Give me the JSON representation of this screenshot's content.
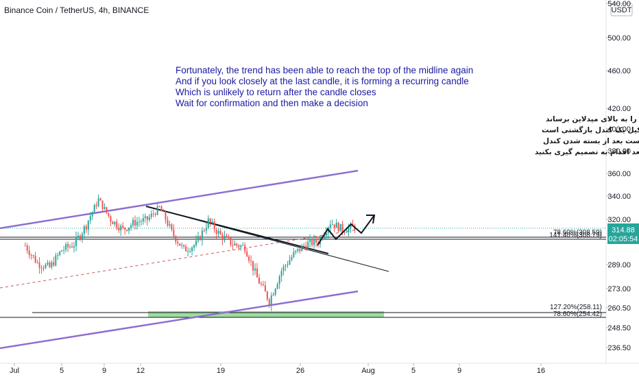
{
  "header": {
    "title": "Binance Coin / TetherUS, 4h, BINANCE",
    "currency": "USDT"
  },
  "annotations": {
    "english": [
      "Fortunately, the trend has been able to reach the top of the midline again",
      "And if you look closely at the last candle, it is forming a recurring candle",
      "Which is unlikely to return after the candle closes",
      "Wait for confirmation and then make a decision"
    ],
    "persian": [
      "خوشبختانه روند دوباره توانسته خودش را به بالای میدلاین برساند",
      "و اگر به کندل آخر دقت کنید درحال تشکیل یک کندل بازگشتی است",
      "که احتمال اینکه روند بازگشت بکند کم است بعد از بسته شدن کندل",
      "منتظر گرفتن تاییدیه باشید و بعد اقدام به تصمیم گیری بکنید"
    ]
  },
  "price_badge": {
    "price": "314.88",
    "countdown": "02:05:54",
    "color": "#26a69a"
  },
  "fib_labels": {
    "upper_a": "78.60%(308.59)",
    "upper_b": "141.40%(308.79)",
    "lower_a": "127.20%(258.11)",
    "lower_b": "78.60%(254.42)"
  },
  "colors": {
    "up": "#26a69a",
    "down": "#ef5350",
    "channel": "#8c6fd1",
    "zone": "#7fcf7f"
  },
  "chart_data": {
    "type": "candlestick",
    "symbol": "BNBUSDT",
    "timeframe": "4h",
    "x_tick_labels": [
      "Jul",
      "5",
      "9",
      "12",
      "19",
      "26",
      "Aug",
      "5",
      "9",
      "16"
    ],
    "y_tick_labels": [
      "540.00",
      "500.00",
      "460.00",
      "420.00",
      "400.00",
      "380.00",
      "360.00",
      "340.00",
      "320.00",
      "289.00",
      "273.00",
      "260.50",
      "248.50",
      "236.50"
    ],
    "y_ticks": [
      540,
      500,
      460,
      420,
      400,
      380,
      360,
      340,
      320,
      289,
      273,
      260.5,
      248.5,
      236.5
    ],
    "last_price": 314.88,
    "close_path": [
      {
        "date": "2021-07-01",
        "price": 302
      },
      {
        "date": "2021-07-02",
        "price": 290
      },
      {
        "date": "2021-07-03",
        "price": 287
      },
      {
        "date": "2021-07-04",
        "price": 299
      },
      {
        "date": "2021-07-05",
        "price": 303
      },
      {
        "date": "2021-07-06",
        "price": 316
      },
      {
        "date": "2021-07-07",
        "price": 337
      },
      {
        "date": "2021-07-08",
        "price": 320
      },
      {
        "date": "2021-07-09",
        "price": 313
      },
      {
        "date": "2021-07-10",
        "price": 318
      },
      {
        "date": "2021-07-11",
        "price": 320
      },
      {
        "date": "2021-07-12",
        "price": 330
      },
      {
        "date": "2021-07-13",
        "price": 311
      },
      {
        "date": "2021-07-14",
        "price": 299
      },
      {
        "date": "2021-07-15",
        "price": 303
      },
      {
        "date": "2021-07-16",
        "price": 319
      },
      {
        "date": "2021-07-17",
        "price": 309
      },
      {
        "date": "2021-07-18",
        "price": 303
      },
      {
        "date": "2021-07-19",
        "price": 301
      },
      {
        "date": "2021-07-20",
        "price": 280
      },
      {
        "date": "2021-07-21",
        "price": 265
      },
      {
        "date": "2021-07-22",
        "price": 285
      },
      {
        "date": "2021-07-23",
        "price": 296
      },
      {
        "date": "2021-07-24",
        "price": 303
      },
      {
        "date": "2021-07-25",
        "price": 305
      },
      {
        "date": "2021-07-26",
        "price": 318
      },
      {
        "date": "2021-07-27",
        "price": 313
      },
      {
        "date": "2021-07-28",
        "price": 314.88
      }
    ],
    "projection": [
      {
        "date": "2021-07-28",
        "price": 306
      },
      {
        "date": "2021-07-29",
        "price": 312
      },
      {
        "date": "2021-07-30",
        "price": 311
      },
      {
        "date": "2021-07-31",
        "price": 321
      }
    ],
    "upper_channel": [
      {
        "date": "2021-06-30",
        "price": 310
      },
      {
        "date": "2021-07-29",
        "price": 361
      }
    ],
    "lower_channel": [
      {
        "date": "2021-06-30",
        "price": 240
      },
      {
        "date": "2021-07-29",
        "price": 271
      }
    ],
    "midline": [
      {
        "date": "2021-06-30",
        "price": 279
      },
      {
        "date": "2021-07-29",
        "price": 314
      }
    ],
    "downtrend_line": [
      {
        "date": "2021-07-12",
        "price": 329
      },
      {
        "date": "2021-07-28",
        "price": 301
      }
    ],
    "support_zone": {
      "from": 254.42,
      "to": 258.11
    },
    "levels": [
      308.59,
      308.79,
      258.11,
      254.42
    ]
  }
}
